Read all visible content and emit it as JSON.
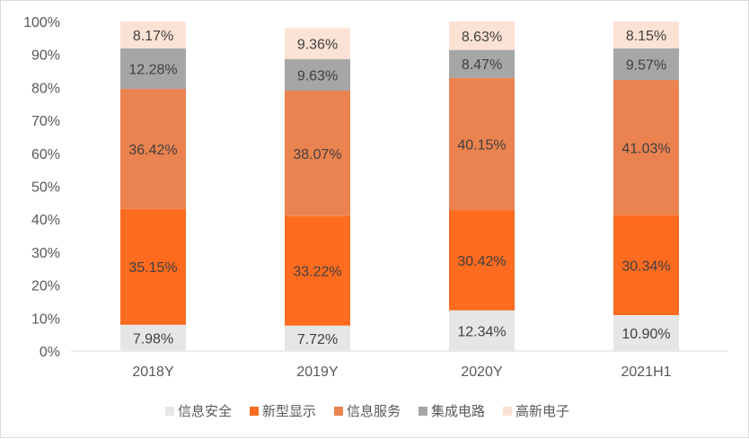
{
  "chart_data": {
    "type": "bar",
    "stacked": true,
    "percent": true,
    "categories": [
      "2018Y",
      "2019Y",
      "2020Y",
      "2021H1"
    ],
    "series": [
      {
        "name": "信息安全",
        "color": "#e6e6e6",
        "values": [
          7.98,
          7.72,
          12.34,
          10.9
        ],
        "labels": [
          "7.98%",
          "7.72%",
          "12.34%",
          "10.90%"
        ]
      },
      {
        "name": "新型显示",
        "color": "#ff6b1f",
        "values": [
          35.15,
          33.22,
          30.42,
          30.34
        ],
        "labels": [
          "35.15%",
          "33.22%",
          "30.42%",
          "30.34%"
        ]
      },
      {
        "name": "信息服务",
        "color": "#eb8350",
        "values": [
          36.42,
          38.07,
          40.15,
          41.03
        ],
        "labels": [
          "36.42%",
          "38.07%",
          "40.15%",
          "41.03%"
        ]
      },
      {
        "name": "集成电路",
        "color": "#a6a6a6",
        "values": [
          12.28,
          9.63,
          8.47,
          9.57
        ],
        "labels": [
          "12.28%",
          "9.63%",
          "8.47%",
          "9.57%"
        ]
      },
      {
        "name": "高新电子",
        "color": "#fbe2d5",
        "values": [
          8.17,
          9.36,
          8.63,
          8.15
        ],
        "labels": [
          "8.17%",
          "9.36%",
          "8.63%",
          "8.15%"
        ]
      }
    ],
    "y_ticks": [
      "0%",
      "10%",
      "20%",
      "30%",
      "40%",
      "50%",
      "60%",
      "70%",
      "80%",
      "90%",
      "100%"
    ],
    "ylim": [
      0,
      100
    ],
    "grid": false,
    "legend": "bottom"
  }
}
